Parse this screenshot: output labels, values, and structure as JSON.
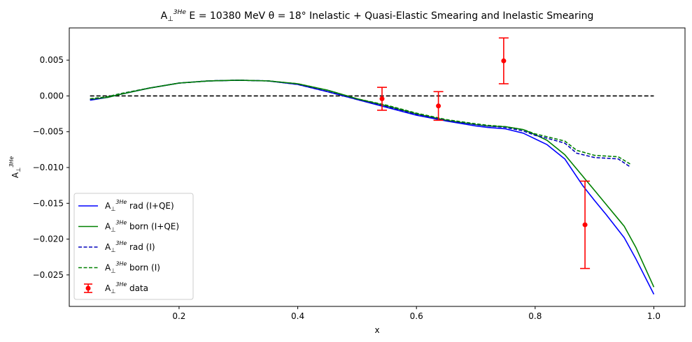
{
  "chart_data": {
    "type": "line",
    "title": {
      "prefix": "A",
      "sub": "⊥",
      "sup": "3He",
      "main": " E = 10380 MeV θ = 18° Inelastic + Quasi-Elastic Smearing and Inelastic Smearing"
    },
    "xlabel": "x",
    "ylabel": {
      "prefix": "A",
      "sub": "⊥",
      "sup": "3He"
    },
    "xlim": [
      0.015,
      1.0525
    ],
    "ylim": [
      -0.0294,
      0.0095
    ],
    "xticks": [
      0.2,
      0.4,
      0.6,
      0.8,
      1.0
    ],
    "xtick_labels": [
      "0.2",
      "0.4",
      "0.6",
      "0.8",
      "1.0"
    ],
    "yticks": [
      0.005,
      0.0,
      -0.005,
      -0.01,
      -0.015,
      -0.02,
      -0.025
    ],
    "ytick_labels": [
      "0.005",
      "0.000",
      "−0.005",
      "−0.010",
      "−0.015",
      "−0.020",
      "−0.025"
    ],
    "grid": false,
    "legend_position": "lower-left",
    "zero_line": {
      "y": 0.0,
      "x_range": [
        0.05,
        1.0
      ],
      "color": "#000000",
      "style": "dashed"
    },
    "series": [
      {
        "key": "rad_iqe",
        "label_suffix": " rad (I+QE)",
        "color": "#0000ff",
        "style": "solid",
        "x": [
          0.05,
          0.08,
          0.1,
          0.15,
          0.2,
          0.25,
          0.3,
          0.35,
          0.4,
          0.45,
          0.5,
          0.55,
          0.6,
          0.65,
          0.7,
          0.72,
          0.75,
          0.78,
          0.8,
          0.82,
          0.85,
          0.88,
          0.9,
          0.92,
          0.95,
          0.97,
          1.0
        ],
        "y": [
          -0.0006,
          -0.0002,
          0.0002,
          0.0011,
          0.0018,
          0.0021,
          0.0022,
          0.0021,
          0.0016,
          0.0006,
          -0.0005,
          -0.0016,
          -0.0027,
          -0.0035,
          -0.0042,
          -0.0044,
          -0.0046,
          -0.0052,
          -0.006,
          -0.0068,
          -0.0088,
          -0.0125,
          -0.0146,
          -0.0166,
          -0.0198,
          -0.0228,
          -0.0277
        ]
      },
      {
        "key": "born_iqe",
        "label_suffix": " born (I+QE)",
        "color": "#008000",
        "style": "solid",
        "x": [
          0.05,
          0.08,
          0.1,
          0.15,
          0.2,
          0.25,
          0.3,
          0.35,
          0.4,
          0.45,
          0.5,
          0.55,
          0.6,
          0.65,
          0.7,
          0.72,
          0.75,
          0.78,
          0.8,
          0.82,
          0.85,
          0.88,
          0.9,
          0.92,
          0.95,
          0.97,
          1.0
        ],
        "y": [
          -0.0005,
          -0.0002,
          0.0002,
          0.0011,
          0.0018,
          0.0021,
          0.0022,
          0.0021,
          0.0017,
          0.0008,
          -0.0004,
          -0.0014,
          -0.0025,
          -0.0034,
          -0.004,
          -0.0042,
          -0.0043,
          -0.0047,
          -0.0054,
          -0.0062,
          -0.0082,
          -0.0112,
          -0.0132,
          -0.0152,
          -0.0182,
          -0.0212,
          -0.0267
        ]
      },
      {
        "key": "rad_i",
        "label_suffix": " rad (I)",
        "color": "#0000bb",
        "style": "dashed",
        "x": [
          0.05,
          0.08,
          0.1,
          0.15,
          0.2,
          0.25,
          0.3,
          0.35,
          0.4,
          0.45,
          0.5,
          0.55,
          0.6,
          0.65,
          0.7,
          0.72,
          0.75,
          0.78,
          0.8,
          0.82,
          0.85,
          0.87,
          0.9,
          0.92,
          0.94,
          0.96
        ],
        "y": [
          -0.0005,
          -0.0001,
          0.0003,
          0.0011,
          0.0018,
          0.0021,
          0.0022,
          0.0021,
          0.0016,
          0.0006,
          -0.0005,
          -0.0015,
          -0.0026,
          -0.0034,
          -0.004,
          -0.0042,
          -0.0044,
          -0.0049,
          -0.0055,
          -0.0059,
          -0.0066,
          -0.008,
          -0.0086,
          -0.0087,
          -0.0088,
          -0.0099
        ]
      },
      {
        "key": "born_i",
        "label_suffix": " born (I)",
        "color": "#008000",
        "style": "dashed",
        "x": [
          0.05,
          0.08,
          0.1,
          0.15,
          0.2,
          0.25,
          0.3,
          0.35,
          0.4,
          0.45,
          0.5,
          0.55,
          0.6,
          0.65,
          0.7,
          0.72,
          0.75,
          0.78,
          0.8,
          0.82,
          0.85,
          0.87,
          0.9,
          0.92,
          0.94,
          0.96
        ],
        "y": [
          -0.0004,
          -0.0001,
          0.0003,
          0.0011,
          0.0018,
          0.0021,
          0.0022,
          0.0021,
          0.0017,
          0.0008,
          -0.0004,
          -0.0013,
          -0.0024,
          -0.0033,
          -0.0039,
          -0.0041,
          -0.0043,
          -0.0047,
          -0.0053,
          -0.0057,
          -0.0063,
          -0.0076,
          -0.0083,
          -0.0084,
          -0.0085,
          -0.0095
        ]
      }
    ],
    "data_points": {
      "key": "data",
      "label_suffix": " data",
      "color": "#ff0000",
      "points": [
        {
          "x": 0.542,
          "y": -0.0004,
          "yerr": 0.0016
        },
        {
          "x": 0.637,
          "y": -0.0014,
          "yerr": 0.002
        },
        {
          "x": 0.747,
          "y": 0.0049,
          "yerr": 0.0032
        },
        {
          "x": 0.884,
          "y": -0.018,
          "yerr": 0.0061
        }
      ]
    },
    "legend_order": [
      "rad_iqe",
      "born_iqe",
      "rad_i",
      "born_i",
      "data"
    ]
  }
}
